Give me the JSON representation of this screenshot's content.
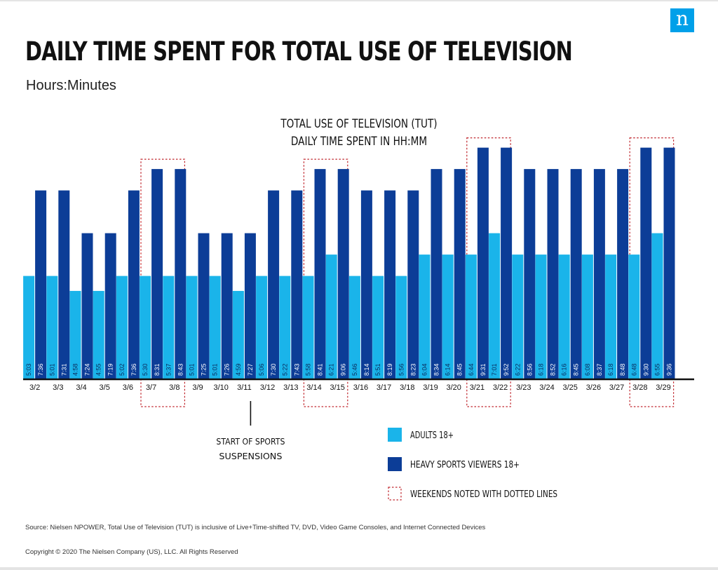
{
  "header": {
    "title": "DAILY TIME SPENT FOR TOTAL USE OF TELEVISION",
    "subtitle": "Hours:Minutes",
    "logo_glyph": "n"
  },
  "chart_data": {
    "type": "bar",
    "title_line1": "TOTAL USE OF TELEVISION (TUT)",
    "title_line2": "DAILY TIME SPENT IN HH:MM",
    "categories": [
      "3/2",
      "3/3",
      "3/4",
      "3/5",
      "3/6",
      "3/7",
      "3/8",
      "3/9",
      "3/10",
      "3/11",
      "3/12",
      "3/13",
      "3/14",
      "3/15",
      "3/16",
      "3/17",
      "3/18",
      "3/19",
      "3/20",
      "3/21",
      "3/22",
      "3/23",
      "3/24",
      "3/25",
      "3/26",
      "3/27",
      "3/28",
      "3/29"
    ],
    "series": [
      {
        "name": "ADULTS 18+",
        "color": "#1ab4ea",
        "values": [
          "5:03",
          "5:01",
          "4:58",
          "4:55",
          "5:02",
          "5:30",
          "5:37",
          "5:01",
          "5:01",
          "4:59",
          "5:06",
          "5:22",
          "5:58",
          "6:21",
          "5:46",
          "5:51",
          "5:56",
          "6:04",
          "6:14",
          "6:44",
          "7:01",
          "6:22",
          "6:18",
          "6:16",
          "6:08",
          "6:18",
          "6:48",
          "6:55"
        ]
      },
      {
        "name": "HEAVY SPORTS VIEWERS 18+",
        "color": "#0c3d97",
        "values": [
          "7:36",
          "7:31",
          "7:24",
          "7:19",
          "7:36",
          "8:31",
          "8:43",
          "7:25",
          "7:26",
          "7:27",
          "7:30",
          "7:43",
          "8:41",
          "9:06",
          "8:14",
          "8:19",
          "8:23",
          "8:34",
          "8:45",
          "9:31",
          "9:52",
          "8:56",
          "8:52",
          "8:45",
          "8:37",
          "8:48",
          "9:30",
          "9:36"
        ]
      }
    ],
    "weekends": [
      [
        "3/7",
        "3/8"
      ],
      [
        "3/14",
        "3/15"
      ],
      [
        "3/21",
        "3/22"
      ],
      [
        "3/28",
        "3/29"
      ]
    ],
    "annotation": {
      "date": "3/11",
      "line1": "START OF SPORTS",
      "line2": "SUSPENSIONS"
    },
    "legend": [
      {
        "kind": "box",
        "color": "#1ab4ea",
        "label": "ADULTS 18+"
      },
      {
        "kind": "box",
        "color": "#0c3d97",
        "label": "HEAVY SPORTS VIEWERS 18+"
      },
      {
        "kind": "dotted",
        "color": "#c0262d",
        "label": "WEEKENDS NOTED WITH DOTTED LINES"
      }
    ]
  },
  "footer": {
    "source": "Source: Nielsen NPOWER, Total Use of Television (TUT) is inclusive of Live+Time-shifted TV, DVD, Video Game Consoles, and Internet Connected Devices",
    "copyright": "Copyright © 2020 The Nielsen Company (US), LLC. All Rights Reserved"
  }
}
